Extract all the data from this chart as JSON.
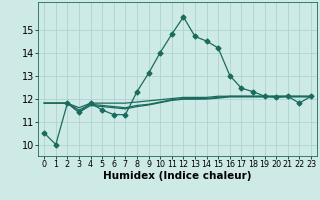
{
  "xlabel": "Humidex (Indice chaleur)",
  "ylabel": "",
  "background_color": "#ceeae6",
  "grid_color": "#aed4d0",
  "line_color": "#1a6b5e",
  "x_values": [
    0,
    1,
    2,
    3,
    4,
    5,
    6,
    7,
    8,
    9,
    10,
    11,
    12,
    13,
    14,
    15,
    16,
    17,
    18,
    19,
    20,
    21,
    22,
    23
  ],
  "series1": [
    10.5,
    10.0,
    11.8,
    11.4,
    11.8,
    11.5,
    11.3,
    11.3,
    12.3,
    13.1,
    14.0,
    14.8,
    15.55,
    14.7,
    14.5,
    14.2,
    13.0,
    12.45,
    12.3,
    12.1,
    12.05,
    12.1,
    11.8,
    12.1
  ],
  "series2": [
    11.8,
    11.8,
    11.8,
    11.6,
    11.8,
    11.8,
    11.8,
    11.8,
    11.85,
    11.9,
    11.95,
    12.0,
    12.05,
    12.05,
    12.05,
    12.1,
    12.1,
    12.1,
    12.1,
    12.1,
    12.1,
    12.1,
    12.1,
    12.1
  ],
  "series3": [
    11.8,
    11.8,
    11.8,
    11.5,
    11.75,
    11.7,
    11.65,
    11.6,
    11.7,
    11.75,
    11.85,
    11.95,
    12.0,
    12.0,
    12.0,
    12.05,
    12.1,
    12.1,
    12.1,
    12.1,
    12.1,
    12.1,
    12.1,
    12.1
  ],
  "series4": [
    11.8,
    11.8,
    11.8,
    11.4,
    11.7,
    11.65,
    11.6,
    11.55,
    11.65,
    11.72,
    11.82,
    11.92,
    11.97,
    11.97,
    11.98,
    12.02,
    12.07,
    12.07,
    12.07,
    12.07,
    12.07,
    12.07,
    12.07,
    12.07
  ],
  "ylim": [
    9.5,
    16.2
  ],
  "yticks": [
    10,
    11,
    12,
    13,
    14,
    15
  ],
  "xlim": [
    -0.5,
    23.5
  ],
  "tick_fontsize": 7,
  "xlabel_fontsize": 7.5,
  "marker_size": 2.5
}
